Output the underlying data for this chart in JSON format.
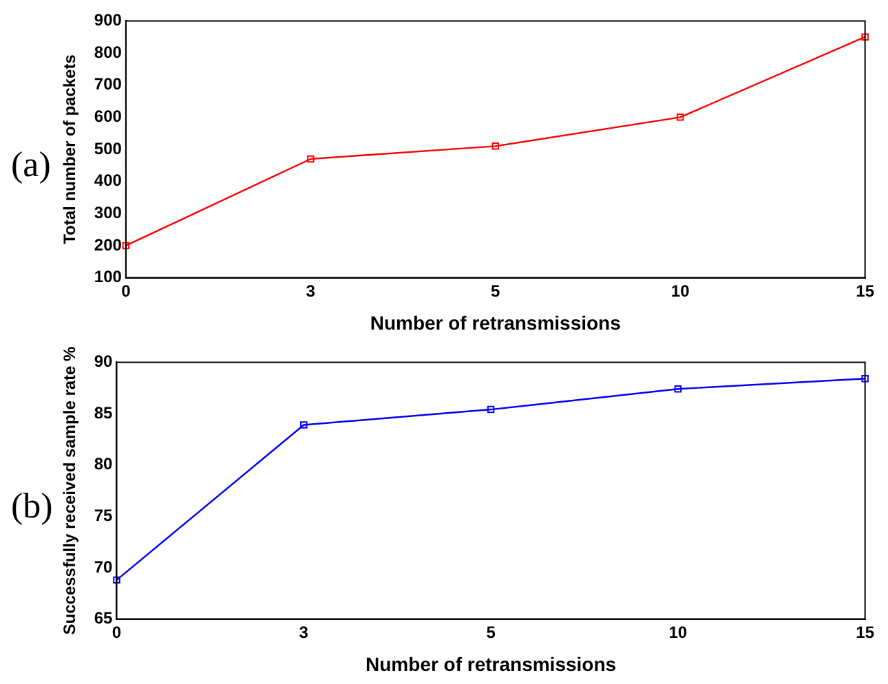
{
  "chart_data": [
    {
      "type": "line",
      "xlabel": "Number of retransmissions",
      "ylabel": "Total number of packets",
      "annotations": [
        "(a)"
      ],
      "categories": [
        "0",
        "3",
        "5",
        "10",
        "15"
      ],
      "series": [
        {
          "color": "#ff0000",
          "values": [
            200,
            470,
            510,
            600,
            850
          ]
        }
      ],
      "ylim": [
        100,
        900
      ],
      "yticks": [
        100,
        200,
        300,
        400,
        500,
        600,
        700,
        800,
        900
      ],
      "grid": false,
      "legend": false,
      "marker": "square",
      "line_style": "solid"
    },
    {
      "type": "line",
      "xlabel": "Number of retransmissions",
      "ylabel": "Successfully received sample rate %",
      "annotations": [
        "(b)"
      ],
      "categories": [
        "0",
        "3",
        "5",
        "10",
        "15"
      ],
      "series": [
        {
          "color": "#0000ff",
          "values": [
            68.8,
            83.9,
            85.4,
            87.4,
            88.4
          ]
        }
      ],
      "ylim": [
        65,
        90
      ],
      "yticks": [
        65,
        70,
        75,
        80,
        85,
        90
      ],
      "grid": false,
      "legend": false,
      "marker": "square",
      "line_style": "solid"
    }
  ]
}
